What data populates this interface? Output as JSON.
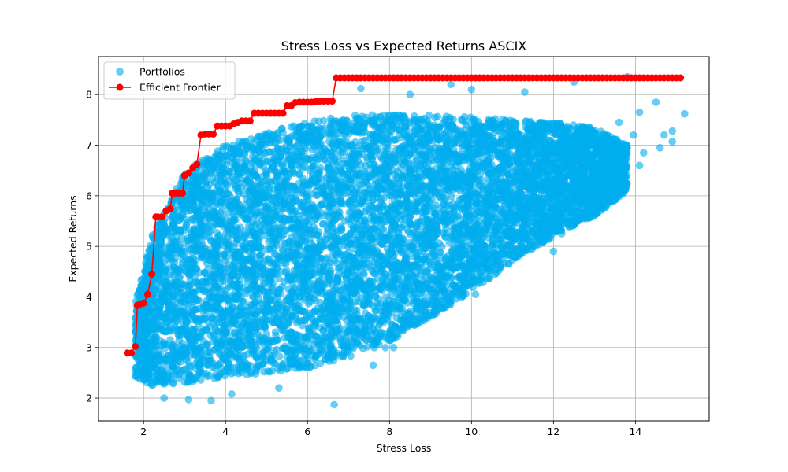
{
  "chart_data": {
    "type": "scatter",
    "title": "Stress Loss vs Expected Returns ASCIX",
    "xlabel": "Stress Loss",
    "ylabel": "Expected Returns",
    "xlim": [
      0.9,
      15.8
    ],
    "ylim": [
      1.55,
      8.75
    ],
    "xticks": [
      "2",
      "4",
      "6",
      "8",
      "10",
      "12",
      "14"
    ],
    "yticks": [
      "2",
      "3",
      "4",
      "5",
      "6",
      "7",
      "8"
    ],
    "grid": true,
    "legend_position": "top-left",
    "series": [
      {
        "name": "Portfolios",
        "kind": "scatter",
        "color": "#00aeef",
        "cloud_envelope": {
          "x": [
            1.8,
            2.2,
            3.0,
            4.0,
            5.0,
            6.0,
            7.0,
            8.0,
            9.0,
            10.0,
            11.0,
            12.0,
            13.0,
            13.8
          ],
          "y_low": [
            2.4,
            2.25,
            2.3,
            2.4,
            2.5,
            2.6,
            2.8,
            3.1,
            3.6,
            4.1,
            4.7,
            5.2,
            5.6,
            6.1
          ],
          "y_high": [
            3.9,
            5.2,
            6.5,
            7.0,
            7.25,
            7.45,
            7.6,
            7.6,
            7.6,
            7.55,
            7.5,
            7.45,
            7.35,
            7.0
          ]
        },
        "outliers": [
          [
            6.65,
            1.87
          ],
          [
            3.65,
            1.95
          ],
          [
            4.15,
            2.08
          ],
          [
            2.5,
            2.0
          ],
          [
            3.1,
            1.97
          ],
          [
            5.3,
            2.2
          ],
          [
            7.6,
            2.65
          ],
          [
            7.9,
            3.0
          ],
          [
            8.1,
            3.0
          ],
          [
            9.1,
            3.7
          ],
          [
            10.1,
            4.05
          ],
          [
            12.0,
            4.9
          ],
          [
            12.2,
            5.25
          ],
          [
            12.6,
            5.5
          ],
          [
            7.3,
            8.12
          ],
          [
            8.5,
            8.0
          ],
          [
            9.5,
            8.2
          ],
          [
            10.0,
            8.1
          ],
          [
            11.3,
            8.05
          ],
          [
            12.5,
            8.25
          ],
          [
            13.8,
            8.35
          ],
          [
            14.5,
            7.85
          ],
          [
            14.1,
            7.65
          ],
          [
            15.2,
            7.62
          ],
          [
            14.9,
            7.28
          ],
          [
            14.9,
            7.07
          ],
          [
            14.6,
            6.95
          ],
          [
            14.2,
            6.85
          ],
          [
            14.1,
            6.6
          ],
          [
            13.8,
            6.95
          ],
          [
            13.95,
            7.2
          ],
          [
            14.7,
            7.2
          ],
          [
            13.6,
            7.45
          ],
          [
            13.4,
            6.28
          ]
        ]
      },
      {
        "name": "Efficient Frontier",
        "kind": "line",
        "color": "#ff0000",
        "points": [
          [
            1.6,
            2.89
          ],
          [
            1.7,
            2.89
          ],
          [
            1.8,
            3.02
          ],
          [
            1.85,
            3.83
          ],
          [
            1.9,
            3.85
          ],
          [
            2.0,
            3.88
          ],
          [
            2.1,
            4.05
          ],
          [
            2.2,
            4.45
          ],
          [
            2.3,
            5.58
          ],
          [
            2.35,
            5.58
          ],
          [
            2.45,
            5.58
          ],
          [
            2.55,
            5.7
          ],
          [
            2.65,
            5.74
          ],
          [
            2.7,
            6.05
          ],
          [
            2.75,
            6.05
          ],
          [
            2.85,
            6.05
          ],
          [
            2.95,
            6.05
          ],
          [
            3.0,
            6.4
          ],
          [
            3.1,
            6.45
          ],
          [
            3.2,
            6.55
          ],
          [
            3.3,
            6.62
          ],
          [
            3.4,
            7.2
          ],
          [
            3.5,
            7.22
          ],
          [
            3.6,
            7.22
          ],
          [
            3.7,
            7.22
          ],
          [
            3.8,
            7.38
          ],
          [
            3.9,
            7.38
          ],
          [
            4.0,
            7.38
          ],
          [
            4.1,
            7.38
          ],
          [
            4.2,
            7.42
          ],
          [
            4.3,
            7.45
          ],
          [
            4.4,
            7.48
          ],
          [
            4.5,
            7.48
          ],
          [
            4.6,
            7.48
          ],
          [
            4.7,
            7.63
          ],
          [
            4.8,
            7.63
          ],
          [
            4.9,
            7.63
          ],
          [
            5.0,
            7.63
          ],
          [
            5.1,
            7.63
          ],
          [
            5.2,
            7.63
          ],
          [
            5.3,
            7.63
          ],
          [
            5.4,
            7.63
          ],
          [
            5.5,
            7.78
          ],
          [
            5.6,
            7.78
          ],
          [
            5.7,
            7.84
          ],
          [
            5.8,
            7.85
          ],
          [
            5.9,
            7.85
          ],
          [
            6.0,
            7.85
          ],
          [
            6.1,
            7.85
          ],
          [
            6.2,
            7.86
          ],
          [
            6.3,
            7.87
          ],
          [
            6.4,
            7.87
          ],
          [
            6.5,
            7.87
          ],
          [
            6.6,
            7.87
          ],
          [
            6.7,
            8.33
          ],
          [
            6.8,
            8.33
          ],
          [
            6.9,
            8.33
          ],
          [
            7.0,
            8.33
          ],
          [
            7.1,
            8.33
          ],
          [
            7.2,
            8.33
          ],
          [
            7.3,
            8.33
          ],
          [
            7.4,
            8.33
          ],
          [
            7.5,
            8.33
          ],
          [
            7.6,
            8.33
          ],
          [
            7.7,
            8.33
          ],
          [
            7.8,
            8.33
          ],
          [
            7.9,
            8.33
          ],
          [
            8.0,
            8.33
          ],
          [
            8.1,
            8.33
          ],
          [
            8.2,
            8.33
          ],
          [
            8.3,
            8.33
          ],
          [
            8.4,
            8.33
          ],
          [
            8.5,
            8.33
          ],
          [
            8.6,
            8.33
          ],
          [
            8.7,
            8.33
          ],
          [
            8.8,
            8.33
          ],
          [
            8.9,
            8.33
          ],
          [
            9.0,
            8.33
          ],
          [
            9.1,
            8.33
          ],
          [
            9.2,
            8.33
          ],
          [
            9.3,
            8.33
          ],
          [
            9.4,
            8.33
          ],
          [
            9.5,
            8.33
          ],
          [
            9.6,
            8.33
          ],
          [
            9.7,
            8.33
          ],
          [
            9.8,
            8.33
          ],
          [
            9.9,
            8.33
          ],
          [
            10.0,
            8.33
          ],
          [
            10.1,
            8.33
          ],
          [
            10.2,
            8.33
          ],
          [
            10.3,
            8.33
          ],
          [
            10.4,
            8.33
          ],
          [
            10.5,
            8.33
          ],
          [
            10.6,
            8.33
          ],
          [
            10.7,
            8.33
          ],
          [
            10.8,
            8.33
          ],
          [
            10.9,
            8.33
          ],
          [
            11.0,
            8.33
          ],
          [
            11.1,
            8.33
          ],
          [
            11.2,
            8.33
          ],
          [
            11.3,
            8.33
          ],
          [
            11.4,
            8.33
          ],
          [
            11.5,
            8.33
          ],
          [
            11.6,
            8.33
          ],
          [
            11.7,
            8.33
          ],
          [
            11.8,
            8.33
          ],
          [
            11.9,
            8.33
          ],
          [
            12.0,
            8.33
          ],
          [
            12.1,
            8.33
          ],
          [
            12.2,
            8.33
          ],
          [
            12.3,
            8.33
          ],
          [
            12.4,
            8.33
          ],
          [
            12.5,
            8.33
          ],
          [
            12.6,
            8.33
          ],
          [
            12.7,
            8.33
          ],
          [
            12.8,
            8.33
          ],
          [
            12.9,
            8.33
          ],
          [
            13.0,
            8.33
          ],
          [
            13.1,
            8.33
          ],
          [
            13.2,
            8.33
          ],
          [
            13.3,
            8.33
          ],
          [
            13.4,
            8.33
          ],
          [
            13.5,
            8.33
          ],
          [
            13.6,
            8.33
          ],
          [
            13.7,
            8.33
          ],
          [
            13.8,
            8.33
          ],
          [
            13.9,
            8.33
          ],
          [
            14.0,
            8.33
          ],
          [
            14.1,
            8.33
          ],
          [
            14.2,
            8.33
          ],
          [
            14.3,
            8.33
          ],
          [
            14.4,
            8.33
          ],
          [
            14.5,
            8.33
          ],
          [
            14.6,
            8.33
          ],
          [
            14.7,
            8.33
          ],
          [
            14.8,
            8.33
          ],
          [
            14.9,
            8.33
          ],
          [
            15.0,
            8.33
          ],
          [
            15.1,
            8.33
          ]
        ]
      }
    ]
  }
}
